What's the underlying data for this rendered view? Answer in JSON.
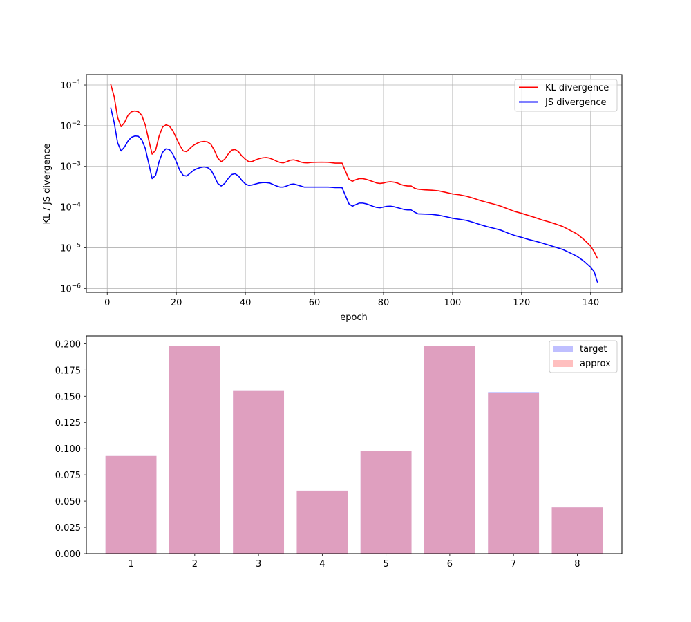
{
  "chart_data": [
    {
      "type": "line",
      "xlabel": "epoch",
      "ylabel": "KL / JS divergence",
      "yscale": "log",
      "xlim": [
        -6.05,
        149.05
      ],
      "ylim": [
        8e-07,
        0.18
      ],
      "xticks": [
        0,
        20,
        40,
        60,
        80,
        100,
        120,
        140
      ],
      "yticks": [
        {
          "value": 1e-06,
          "mantissa": "10",
          "exp": "−6"
        },
        {
          "value": 1e-05,
          "mantissa": "10",
          "exp": "−5"
        },
        {
          "value": 0.0001,
          "mantissa": "10",
          "exp": "−4"
        },
        {
          "value": 0.001,
          "mantissa": "10",
          "exp": "−3"
        },
        {
          "value": 0.01,
          "mantissa": "10",
          "exp": "−2"
        },
        {
          "value": 0.1,
          "mantissa": "10",
          "exp": "−1"
        }
      ],
      "grid": true,
      "legend_position": "top-right",
      "series": [
        {
          "name": "KL divergence",
          "color": "#ff0000",
          "points": [
            [
              1,
              0.105
            ],
            [
              2,
              0.052
            ],
            [
              3,
              0.016
            ],
            [
              4,
              0.0095
            ],
            [
              5,
              0.012
            ],
            [
              6,
              0.018
            ],
            [
              7,
              0.022
            ],
            [
              8,
              0.023
            ],
            [
              9,
              0.022
            ],
            [
              10,
              0.018
            ],
            [
              11,
              0.0105
            ],
            [
              12,
              0.0045
            ],
            [
              13,
              0.002
            ],
            [
              14,
              0.0025
            ],
            [
              15,
              0.0055
            ],
            [
              16,
              0.0092
            ],
            [
              17,
              0.0105
            ],
            [
              18,
              0.0098
            ],
            [
              19,
              0.0075
            ],
            [
              20,
              0.005
            ],
            [
              21,
              0.0033
            ],
            [
              22,
              0.0024
            ],
            [
              23,
              0.0023
            ],
            [
              24,
              0.0028
            ],
            [
              25,
              0.0033
            ],
            [
              26,
              0.0037
            ],
            [
              27,
              0.004
            ],
            [
              28,
              0.0041
            ],
            [
              29,
              0.004
            ],
            [
              30,
              0.0035
            ],
            [
              31,
              0.0025
            ],
            [
              32,
              0.0016
            ],
            [
              33,
              0.0013
            ],
            [
              34,
              0.0015
            ],
            [
              35,
              0.002
            ],
            [
              36,
              0.0025
            ],
            [
              37,
              0.0026
            ],
            [
              38,
              0.0023
            ],
            [
              39,
              0.0018
            ],
            [
              40,
              0.0015
            ],
            [
              41,
              0.0013
            ],
            [
              42,
              0.00132
            ],
            [
              43,
              0.00145
            ],
            [
              44,
              0.00155
            ],
            [
              45,
              0.00162
            ],
            [
              46,
              0.00165
            ],
            [
              47,
              0.0016
            ],
            [
              48,
              0.00148
            ],
            [
              49,
              0.00135
            ],
            [
              50,
              0.00125
            ],
            [
              51,
              0.00122
            ],
            [
              52,
              0.0013
            ],
            [
              53,
              0.00142
            ],
            [
              54,
              0.00145
            ],
            [
              55,
              0.00138
            ],
            [
              56,
              0.00128
            ],
            [
              57,
              0.00123
            ],
            [
              58,
              0.00122
            ],
            [
              59,
              0.00125
            ],
            [
              60,
              0.00126
            ],
            [
              62,
              0.00127
            ],
            [
              64,
              0.00126
            ],
            [
              66,
              0.0012
            ],
            [
              68,
              0.0012
            ],
            [
              70,
              0.00048
            ],
            [
              71,
              0.00043
            ],
            [
              72,
              0.00047
            ],
            [
              73,
              0.0005
            ],
            [
              74,
              0.0005
            ],
            [
              75,
              0.00048
            ],
            [
              76,
              0.00045
            ],
            [
              77,
              0.00042
            ],
            [
              78,
              0.00039
            ],
            [
              79,
              0.00038
            ],
            [
              80,
              0.00039
            ],
            [
              81,
              0.00041
            ],
            [
              82,
              0.00042
            ],
            [
              83,
              0.00041
            ],
            [
              84,
              0.00039
            ],
            [
              85,
              0.00036
            ],
            [
              86,
              0.00034
            ],
            [
              87,
              0.00033
            ],
            [
              88,
              0.00033
            ],
            [
              89,
              0.00029
            ],
            [
              90,
              0.000275
            ],
            [
              92,
              0.000265
            ],
            [
              94,
              0.00026
            ],
            [
              96,
              0.00025
            ],
            [
              98,
              0.00023
            ],
            [
              100,
              0.00021
            ],
            [
              102,
              0.0002
            ],
            [
              104,
              0.000185
            ],
            [
              106,
              0.000165
            ],
            [
              108,
              0.000145
            ],
            [
              110,
              0.00013
            ],
            [
              112,
              0.000118
            ],
            [
              114,
              0.000105
            ],
            [
              116,
              9e-05
            ],
            [
              118,
              7.8e-05
            ],
            [
              120,
              7e-05
            ],
            [
              122,
              6.2e-05
            ],
            [
              124,
              5.5e-05
            ],
            [
              126,
              4.8e-05
            ],
            [
              128,
              4.3e-05
            ],
            [
              130,
              3.8e-05
            ],
            [
              132,
              3.3e-05
            ],
            [
              134,
              2.7e-05
            ],
            [
              136,
              2.2e-05
            ],
            [
              138,
              1.6e-05
            ],
            [
              140,
              1.1e-05
            ],
            [
              141,
              8e-06
            ],
            [
              142,
              5.4e-06
            ]
          ]
        },
        {
          "name": "JS divergence",
          "color": "#0000ff",
          "points": [
            [
              1,
              0.028
            ],
            [
              2,
              0.012
            ],
            [
              3,
              0.0038
            ],
            [
              4,
              0.0024
            ],
            [
              5,
              0.003
            ],
            [
              6,
              0.0042
            ],
            [
              7,
              0.0052
            ],
            [
              8,
              0.0056
            ],
            [
              9,
              0.0055
            ],
            [
              10,
              0.0045
            ],
            [
              11,
              0.0028
            ],
            [
              12,
              0.0012
            ],
            [
              13,
              0.0005
            ],
            [
              14,
              0.0006
            ],
            [
              15,
              0.0013
            ],
            [
              16,
              0.0022
            ],
            [
              17,
              0.0027
            ],
            [
              18,
              0.0026
            ],
            [
              19,
              0.002
            ],
            [
              20,
              0.0013
            ],
            [
              21,
              0.0008
            ],
            [
              22,
              0.0006
            ],
            [
              23,
              0.00058
            ],
            [
              24,
              0.00068
            ],
            [
              25,
              0.0008
            ],
            [
              26,
              0.00088
            ],
            [
              27,
              0.00094
            ],
            [
              28,
              0.00097
            ],
            [
              29,
              0.00094
            ],
            [
              30,
              0.00082
            ],
            [
              31,
              0.00058
            ],
            [
              32,
              0.00038
            ],
            [
              33,
              0.00033
            ],
            [
              34,
              0.00038
            ],
            [
              35,
              0.0005
            ],
            [
              36,
              0.00063
            ],
            [
              37,
              0.00066
            ],
            [
              38,
              0.00058
            ],
            [
              39,
              0.00045
            ],
            [
              40,
              0.00037
            ],
            [
              41,
              0.00034
            ],
            [
              42,
              0.00035
            ],
            [
              43,
              0.00037
            ],
            [
              44,
              0.00039
            ],
            [
              45,
              0.0004
            ],
            [
              46,
              0.0004
            ],
            [
              47,
              0.00039
            ],
            [
              48,
              0.00036
            ],
            [
              49,
              0.00033
            ],
            [
              50,
              0.00031
            ],
            [
              51,
              0.00031
            ],
            [
              52,
              0.00033
            ],
            [
              53,
              0.00036
            ],
            [
              54,
              0.00037
            ],
            [
              55,
              0.00035
            ],
            [
              56,
              0.00033
            ],
            [
              57,
              0.00031
            ],
            [
              58,
              0.00031
            ],
            [
              60,
              0.00031
            ],
            [
              62,
              0.00031
            ],
            [
              64,
              0.00031
            ],
            [
              66,
              0.0003
            ],
            [
              68,
              0.0003
            ],
            [
              70,
              0.00012
            ],
            [
              71,
              0.000105
            ],
            [
              72,
              0.000115
            ],
            [
              73,
              0.000125
            ],
            [
              74,
              0.000125
            ],
            [
              75,
              0.00012
            ],
            [
              76,
              0.000112
            ],
            [
              77,
              0.000104
            ],
            [
              78,
              9.8e-05
            ],
            [
              79,
              9.6e-05
            ],
            [
              80,
              0.0001
            ],
            [
              81,
              0.000104
            ],
            [
              82,
              0.000105
            ],
            [
              83,
              0.000102
            ],
            [
              84,
              9.7e-05
            ],
            [
              85,
              9.2e-05
            ],
            [
              86,
              8.7e-05
            ],
            [
              87,
              8.5e-05
            ],
            [
              88,
              8.5e-05
            ],
            [
              89,
              7.5e-05
            ],
            [
              90,
              6.8e-05
            ],
            [
              92,
              6.7e-05
            ],
            [
              94,
              6.6e-05
            ],
            [
              96,
              6.3e-05
            ],
            [
              98,
              5.8e-05
            ],
            [
              100,
              5.3e-05
            ],
            [
              102,
              5e-05
            ],
            [
              104,
              4.7e-05
            ],
            [
              106,
              4.2e-05
            ],
            [
              108,
              3.7e-05
            ],
            [
              110,
              3.3e-05
            ],
            [
              112,
              3e-05
            ],
            [
              114,
              2.7e-05
            ],
            [
              116,
              2.3e-05
            ],
            [
              118,
              2e-05
            ],
            [
              120,
              1.8e-05
            ],
            [
              122,
              1.6e-05
            ],
            [
              124,
              1.45e-05
            ],
            [
              126,
              1.3e-05
            ],
            [
              128,
              1.15e-05
            ],
            [
              130,
              1.02e-05
            ],
            [
              132,
              9e-06
            ],
            [
              134,
              7.5e-06
            ],
            [
              136,
              6.2e-06
            ],
            [
              138,
              4.7e-06
            ],
            [
              140,
              3.3e-06
            ],
            [
              141,
              2.6e-06
            ],
            [
              142,
              1.4e-06
            ]
          ]
        }
      ]
    },
    {
      "type": "bar",
      "categories": [
        "1",
        "2",
        "3",
        "4",
        "5",
        "6",
        "7",
        "8"
      ],
      "xlim": [
        0.3,
        8.7
      ],
      "ylim": [
        0,
        0.2075
      ],
      "yticks": [
        "0.000",
        "0.025",
        "0.050",
        "0.075",
        "0.100",
        "0.125",
        "0.150",
        "0.175",
        "0.200"
      ],
      "grid": false,
      "legend_position": "top-right",
      "series": [
        {
          "name": "target",
          "color": "#8080ff",
          "values": [
            0.093,
            0.198,
            0.155,
            0.06,
            0.098,
            0.198,
            0.154,
            0.044
          ]
        },
        {
          "name": "approx",
          "color": "#ff8080",
          "values": [
            0.093,
            0.198,
            0.155,
            0.06,
            0.098,
            0.198,
            0.153,
            0.044
          ]
        }
      ]
    }
  ]
}
